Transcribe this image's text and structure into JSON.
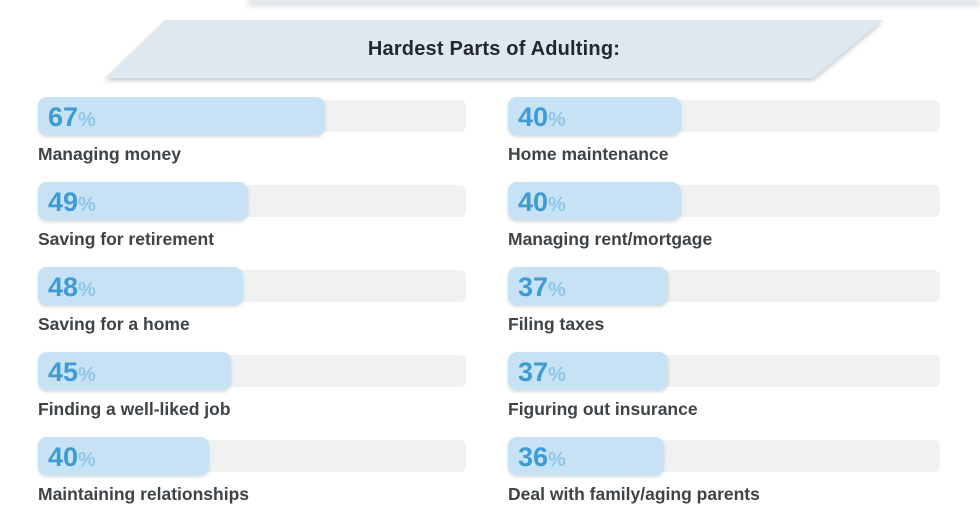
{
  "banner": {
    "title": "Hardest Parts of Adulting:"
  },
  "colors": {
    "banner_bg": "#dfe8ee",
    "title_color": "#23272e",
    "bar_fill": "#c6e2f4",
    "bar_track": "#f0f1f1",
    "pct_number": "#3e9bd4",
    "pct_sign": "#90c6e7",
    "label_color": "#3e4347"
  },
  "unit": "%",
  "chart_data": {
    "type": "bar",
    "title": "Hardest Parts of Adulting:",
    "orientation": "horizontal",
    "value_unit": "%",
    "xlim": [
      0,
      100
    ],
    "grid": false,
    "legend": false,
    "layout": "two columns of rounded horizontal bars; value printed inside bar, category label below bar",
    "columns": [
      {
        "items": [
          {
            "label": "Managing money",
            "value": 67
          },
          {
            "label": "Saving for retirement",
            "value": 49
          },
          {
            "label": "Saving for a home",
            "value": 48
          },
          {
            "label": "Finding a well-liked job",
            "value": 45
          },
          {
            "label": "Maintaining relationships",
            "value": 40
          }
        ]
      },
      {
        "items": [
          {
            "label": "Home maintenance",
            "value": 40
          },
          {
            "label": "Managing rent/mortgage",
            "value": 40
          },
          {
            "label": "Filing taxes",
            "value": 37
          },
          {
            "label": "Figuring out insurance",
            "value": 37
          },
          {
            "label": "Deal with family/aging parents",
            "value": 36
          }
        ]
      }
    ]
  }
}
